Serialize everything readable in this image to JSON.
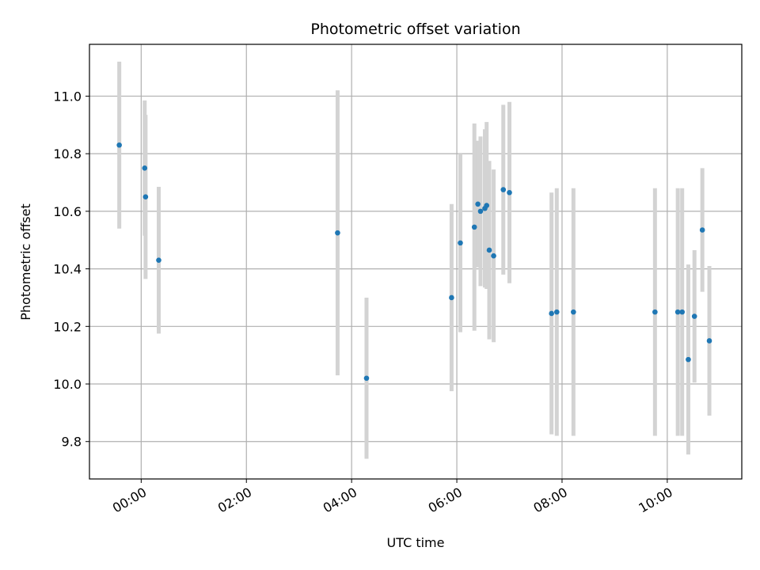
{
  "chart_data": {
    "type": "scatter",
    "title": "Photometric offset variation",
    "xlabel": "UTC time",
    "ylabel": "Photometric offset",
    "x_ticks": [
      "00:00",
      "02:00",
      "04:00",
      "06:00",
      "08:00",
      "10:00"
    ],
    "y_ticks": [
      "9.8",
      "10.0",
      "10.2",
      "10.4",
      "10.6",
      "10.8",
      "11.0"
    ],
    "xlim": [
      "23:01",
      "11:25"
    ],
    "ylim": [
      9.67,
      11.18
    ],
    "grid": true,
    "legend": "none",
    "series": [
      {
        "marker_color": "#1f77b4",
        "errorbar_color": "#d3d3d3",
        "points": [
          {
            "x": "23:35",
            "y": 10.83,
            "yerr": 0.29
          },
          {
            "x": "00:04",
            "y": 10.75,
            "yerr": 0.235
          },
          {
            "x": "00:05",
            "y": 10.65,
            "yerr": 0.285
          },
          {
            "x": "00:20",
            "y": 10.43,
            "yerr": 0.255
          },
          {
            "x": "03:44",
            "y": 10.525,
            "yerr": 0.495
          },
          {
            "x": "04:17",
            "y": 10.02,
            "yerr": 0.28
          },
          {
            "x": "05:54",
            "y": 10.3,
            "yerr": 0.325
          },
          {
            "x": "06:04",
            "y": 10.49,
            "yerr": 0.31
          },
          {
            "x": "06:20",
            "y": 10.545,
            "yerr": 0.36
          },
          {
            "x": "06:24",
            "y": 10.625,
            "yerr": 0.22
          },
          {
            "x": "06:27",
            "y": 10.6,
            "yerr": 0.26
          },
          {
            "x": "06:32",
            "y": 10.61,
            "yerr": 0.275
          },
          {
            "x": "06:34",
            "y": 10.62,
            "yerr": 0.29
          },
          {
            "x": "06:37",
            "y": 10.465,
            "yerr": 0.31
          },
          {
            "x": "06:42",
            "y": 10.445,
            "yerr": 0.3
          },
          {
            "x": "06:53",
            "y": 10.675,
            "yerr": 0.295
          },
          {
            "x": "07:00",
            "y": 10.665,
            "yerr": 0.315
          },
          {
            "x": "07:48",
            "y": 10.245,
            "yerr": 0.42
          },
          {
            "x": "07:54",
            "y": 10.25,
            "yerr": 0.43
          },
          {
            "x": "08:13",
            "y": 10.25,
            "yerr": 0.43
          },
          {
            "x": "09:46",
            "y": 10.25,
            "yerr": 0.43
          },
          {
            "x": "10:12",
            "y": 10.25,
            "yerr": 0.43
          },
          {
            "x": "10:17",
            "y": 10.25,
            "yerr": 0.43
          },
          {
            "x": "10:24",
            "y": 10.085,
            "yerr": 0.33
          },
          {
            "x": "10:31",
            "y": 10.235,
            "yerr": 0.23
          },
          {
            "x": "10:40",
            "y": 10.535,
            "yerr": 0.215
          },
          {
            "x": "10:48",
            "y": 10.15,
            "yerr": 0.26
          }
        ]
      }
    ]
  }
}
